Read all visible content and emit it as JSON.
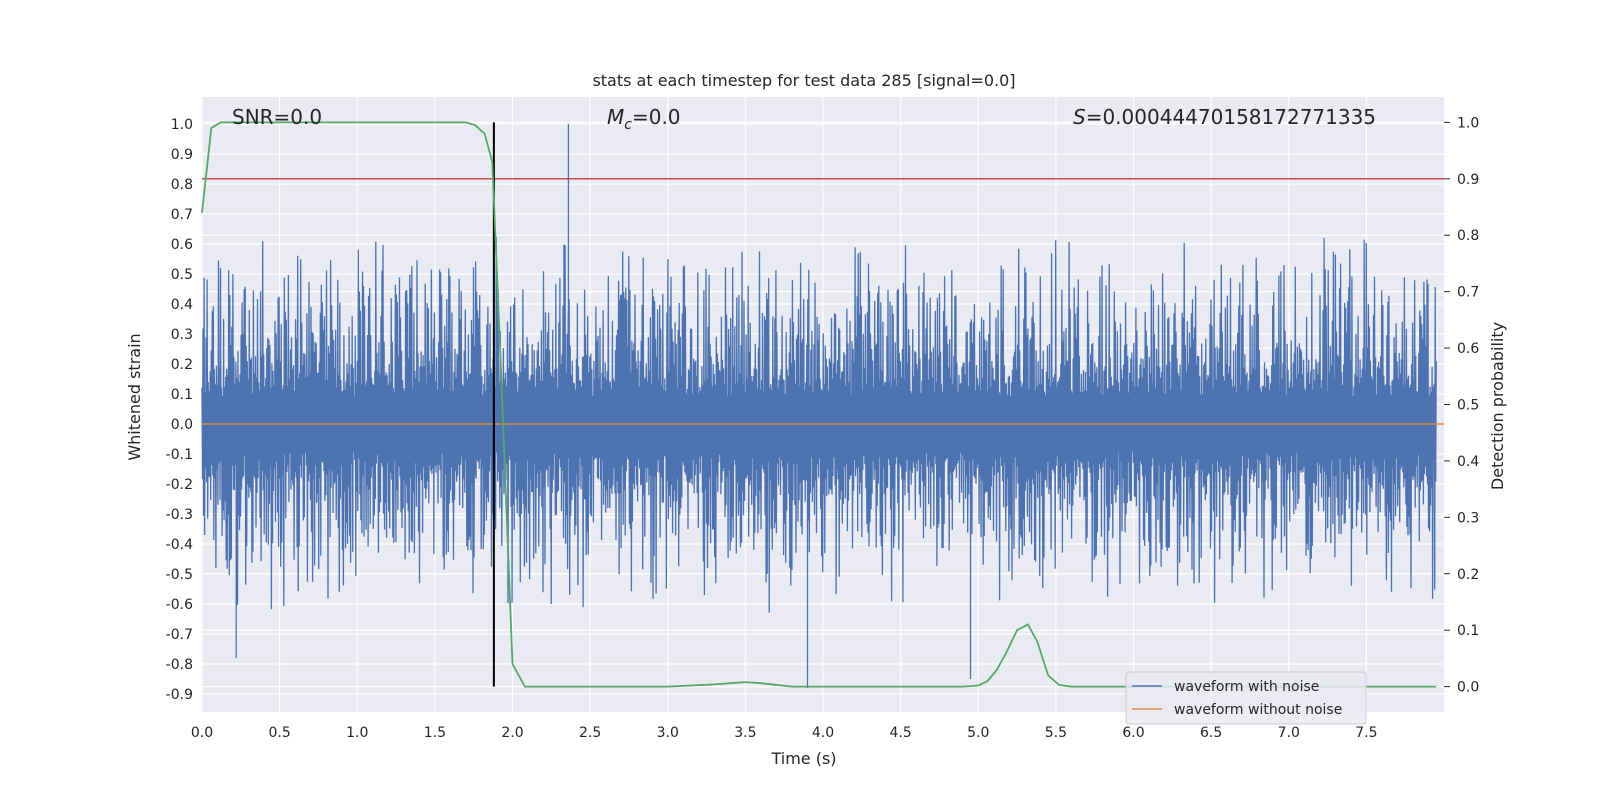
{
  "chart_data": {
    "type": "line",
    "title": "stats at each timestep for test data 285 [signal=0.0]",
    "xlabel": "Time (s)",
    "ylabel": "Whitened strain",
    "y2label": "Detection probability",
    "xlim": [
      0.0,
      8.0
    ],
    "ylim": [
      -0.96,
      1.09
    ],
    "y2lim": [
      -0.045,
      1.045
    ],
    "x_ticks": [
      "0.0",
      "0.5",
      "1.0",
      "1.5",
      "2.0",
      "2.5",
      "3.0",
      "3.5",
      "4.0",
      "4.5",
      "5.0",
      "5.5",
      "6.0",
      "6.5",
      "7.0",
      "7.5"
    ],
    "y_ticks": [
      "1.0",
      "0.9",
      "0.8",
      "0.7",
      "0.6",
      "0.5",
      "0.4",
      "0.3",
      "0.2",
      "0.1",
      "0.0",
      "-0.1",
      "-0.2",
      "-0.3",
      "-0.4",
      "-0.5",
      "-0.6",
      "-0.7",
      "-0.8",
      "-0.9"
    ],
    "y2_ticks": [
      "1.0",
      "0.9",
      "0.8",
      "0.7",
      "0.6",
      "0.5",
      "0.4",
      "0.3",
      "0.2",
      "0.1",
      "0.0"
    ],
    "grid": true,
    "legend_position": "bottom-right",
    "annotations": {
      "snr": "SNR=0.0",
      "mc": "=0.0",
      "mc_symbol": "M",
      "mc_sub": "c",
      "s": "=0.00044470158172771335",
      "s_symbol": "S"
    },
    "series": [
      {
        "name": "waveform with noise",
        "color": "#4c72b0",
        "axis": "left",
        "description_range": [
          -0.88,
          1.0
        ],
        "peaks": [
          [
            2.36,
            1.0
          ],
          [
            0.22,
            -0.78
          ],
          [
            3.9,
            -0.88
          ],
          [
            4.95,
            -0.85
          ]
        ]
      },
      {
        "name": "waveform without noise",
        "color": "#dd8452",
        "axis": "left",
        "x": [
          0.0,
          8.0
        ],
        "y": [
          0.0,
          0.0
        ]
      },
      {
        "color": "#55a868",
        "axis": "right",
        "x": [
          0.0,
          0.06,
          0.12,
          0.2,
          0.4,
          0.8,
          1.2,
          1.5,
          1.7,
          1.76,
          1.82,
          1.87,
          1.92,
          2.0,
          2.08,
          2.15,
          2.5,
          3.0,
          3.3,
          3.5,
          3.6,
          3.8,
          4.0,
          4.5,
          4.9,
          5.0,
          5.06,
          5.12,
          5.18,
          5.25,
          5.32,
          5.38,
          5.45,
          5.52,
          5.6,
          6.0,
          7.0,
          7.95
        ],
        "y": [
          0.84,
          0.99,
          1.0,
          1.0,
          1.0,
          1.0,
          1.0,
          1.0,
          1.0,
          0.995,
          0.98,
          0.93,
          0.6,
          0.04,
          0.0,
          0.0,
          0.0,
          0.0,
          0.004,
          0.008,
          0.006,
          0.0,
          0.0,
          0.0,
          0.0,
          0.002,
          0.01,
          0.03,
          0.06,
          0.1,
          0.11,
          0.08,
          0.02,
          0.003,
          0.0,
          0.0,
          0.0,
          0.0
        ]
      }
    ],
    "threshold_line": {
      "y2": 0.9,
      "color": "#c44e52"
    },
    "vertical_marker": {
      "x": 1.88,
      "color": "#000000"
    }
  }
}
